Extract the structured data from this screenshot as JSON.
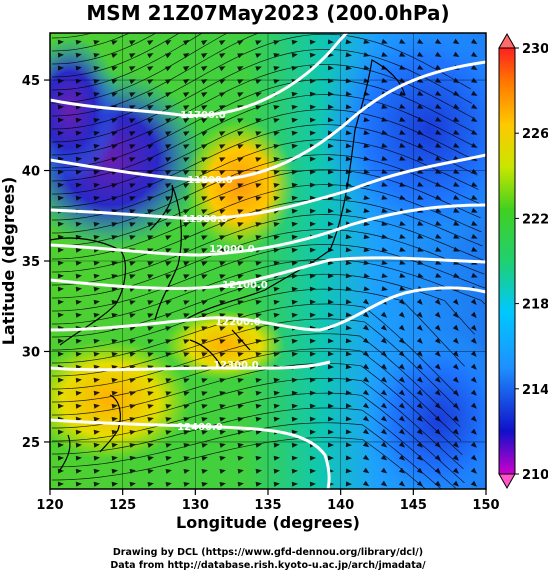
{
  "title": "MSM 21Z07May2023 (200.0hPa)",
  "x_axis": {
    "label": "Longitude (degrees)",
    "ticks": [
      "120",
      "125",
      "130",
      "135",
      "140",
      "145",
      "150"
    ],
    "range": [
      120,
      150
    ]
  },
  "y_axis": {
    "label": "Latitude  (degrees)",
    "ticks": [
      "25",
      "30",
      "35",
      "40",
      "45"
    ],
    "range": [
      22.4,
      47.6
    ]
  },
  "colorbar": {
    "ticks": [
      "210",
      "214",
      "218",
      "222",
      "226",
      "230"
    ],
    "range": [
      210,
      230
    ],
    "colors": [
      "#cc00cc",
      "#1010c8",
      "#1e90ff",
      "#00c8ff",
      "#20d070",
      "#40d020",
      "#c8e600",
      "#ffc800",
      "#ff7800",
      "#ff2020"
    ]
  },
  "contours": [
    {
      "label": "11700.0"
    },
    {
      "label": "11800.0"
    },
    {
      "label": "11900.0"
    },
    {
      "label": "12000.0"
    },
    {
      "label": "12100.0"
    },
    {
      "label": "12200.0"
    },
    {
      "label": "12300.0"
    },
    {
      "label": "12400.0"
    }
  ],
  "credits": {
    "line1": "Drawing by DCL (https://www.gfd-dennou.org/library/dcl/)",
    "line2": "Data from http://database.rish.kyoto-u.ac.jp/arch/jmadata/"
  }
}
